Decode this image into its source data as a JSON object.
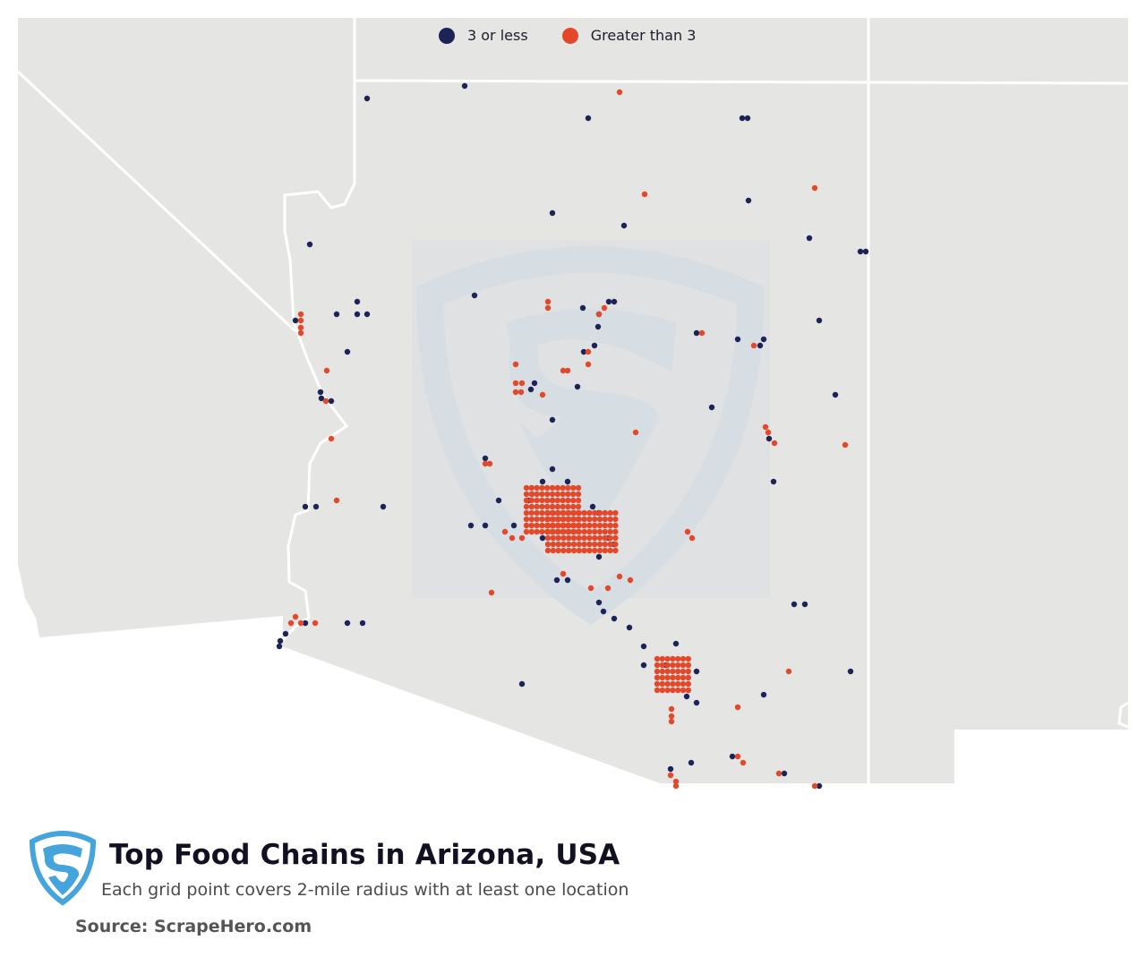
{
  "legend": {
    "items": [
      {
        "label": "3 or less",
        "color": "#1b2357"
      },
      {
        "label": "Greater than 3",
        "color": "#e4482a"
      }
    ]
  },
  "header": {
    "title": "Top Food Chains in Arizona, USA",
    "subtitle": "Each grid point covers 2-mile radius with at least one location",
    "source": "Source: ScrapeHero.com"
  },
  "colors": {
    "land": "#e5e5e4",
    "border": "#ffffff",
    "watermark": "#d6dee4",
    "logo": "#46a4dc",
    "low": "#1b2357",
    "high": "#e4482a"
  },
  "map_data": {
    "region": "Arizona, USA",
    "low_points": [
      [
        410,
        110
      ],
      [
        519,
        96
      ],
      [
        657,
        132
      ],
      [
        829,
        132
      ],
      [
        835,
        132
      ],
      [
        836,
        224
      ],
      [
        617,
        238
      ],
      [
        697,
        252
      ],
      [
        904,
        266
      ],
      [
        346,
        273
      ],
      [
        961,
        281
      ],
      [
        967,
        281
      ],
      [
        530,
        330
      ],
      [
        399,
        337
      ],
      [
        680,
        337
      ],
      [
        686,
        337
      ],
      [
        376,
        351
      ],
      [
        399,
        351
      ],
      [
        410,
        351
      ],
      [
        651,
        344
      ],
      [
        669,
        351
      ],
      [
        330,
        358
      ],
      [
        668,
        365
      ],
      [
        915,
        358
      ],
      [
        778,
        372
      ],
      [
        824,
        379
      ],
      [
        849,
        386
      ],
      [
        853,
        379
      ],
      [
        664,
        386
      ],
      [
        652,
        393
      ],
      [
        388,
        393
      ],
      [
        597,
        428
      ],
      [
        645,
        432
      ],
      [
        593,
        435
      ],
      [
        358,
        438
      ],
      [
        359,
        445
      ],
      [
        370,
        448
      ],
      [
        933,
        441
      ],
      [
        617,
        469
      ],
      [
        795,
        455
      ],
      [
        859,
        490
      ],
      [
        864,
        538
      ],
      [
        542,
        512
      ],
      [
        617,
        524
      ],
      [
        606,
        538
      ],
      [
        634,
        538
      ],
      [
        594,
        552
      ],
      [
        557,
        559
      ],
      [
        574,
        587
      ],
      [
        590,
        559
      ],
      [
        617,
        559
      ],
      [
        341,
        566
      ],
      [
        353,
        566
      ],
      [
        428,
        566
      ],
      [
        526,
        587
      ],
      [
        542,
        587
      ],
      [
        662,
        566
      ],
      [
        669,
        573
      ],
      [
        606,
        601
      ],
      [
        617,
        594
      ],
      [
        680,
        601
      ],
      [
        686,
        608
      ],
      [
        669,
        622
      ],
      [
        622,
        648
      ],
      [
        634,
        648
      ],
      [
        669,
        673
      ],
      [
        674,
        683
      ],
      [
        686,
        691
      ],
      [
        703,
        701
      ],
      [
        388,
        696
      ],
      [
        405,
        696
      ],
      [
        341,
        696
      ],
      [
        887,
        675
      ],
      [
        899,
        675
      ],
      [
        312,
        722
      ],
      [
        313,
        716
      ],
      [
        319,
        708
      ],
      [
        719,
        722
      ],
      [
        755,
        719
      ],
      [
        719,
        743
      ],
      [
        744,
        743
      ],
      [
        778,
        750
      ],
      [
        583,
        764
      ],
      [
        767,
        778
      ],
      [
        778,
        785
      ],
      [
        853,
        776
      ],
      [
        950,
        750
      ],
      [
        749,
        859
      ],
      [
        772,
        852
      ],
      [
        818,
        845
      ],
      [
        876,
        864
      ],
      [
        915,
        878
      ]
    ],
    "high_points": [
      [
        692,
        103
      ],
      [
        720,
        217
      ],
      [
        910,
        210
      ],
      [
        612,
        337
      ],
      [
        669,
        351
      ],
      [
        675,
        344
      ],
      [
        612,
        344
      ],
      [
        336,
        351
      ],
      [
        336,
        358
      ],
      [
        336,
        366
      ],
      [
        336,
        372
      ],
      [
        784,
        372
      ],
      [
        842,
        386
      ],
      [
        657,
        393
      ],
      [
        657,
        407
      ],
      [
        576,
        407
      ],
      [
        629,
        414
      ],
      [
        634,
        414
      ],
      [
        576,
        428
      ],
      [
        583,
        428
      ],
      [
        582,
        438
      ],
      [
        576,
        438
      ],
      [
        606,
        441
      ],
      [
        365,
        414
      ],
      [
        370,
        490
      ],
      [
        364,
        448
      ],
      [
        855,
        477
      ],
      [
        858,
        483
      ],
      [
        865,
        495
      ],
      [
        710,
        483
      ],
      [
        944,
        497
      ],
      [
        542,
        518
      ],
      [
        547,
        518
      ],
      [
        376,
        559
      ],
      [
        660,
        657
      ],
      [
        768,
        594
      ],
      [
        773,
        601
      ],
      [
        692,
        644
      ],
      [
        704,
        648
      ],
      [
        679,
        657
      ],
      [
        629,
        641
      ],
      [
        330,
        689
      ],
      [
        325,
        696
      ],
      [
        336,
        696
      ],
      [
        352,
        696
      ],
      [
        549,
        662
      ],
      [
        881,
        750
      ],
      [
        824,
        790
      ],
      [
        750,
        792
      ],
      [
        750,
        800
      ],
      [
        750,
        806
      ],
      [
        824,
        845
      ],
      [
        830,
        852
      ],
      [
        870,
        864
      ],
      [
        749,
        866
      ],
      [
        755,
        873
      ],
      [
        755,
        878
      ],
      [
        910,
        878
      ],
      [
        564,
        594
      ],
      [
        572,
        601
      ],
      [
        583,
        601
      ]
    ],
    "clusters": [
      {
        "category": "high",
        "x_from": 588,
        "x_to": 646,
        "y_from": 545,
        "y_to": 594
      },
      {
        "category": "high",
        "x_from": 612,
        "x_to": 692,
        "y_from": 573,
        "y_to": 615
      },
      {
        "category": "high",
        "x_from": 734,
        "x_to": 774,
        "y_from": 736,
        "y_to": 771
      }
    ]
  }
}
